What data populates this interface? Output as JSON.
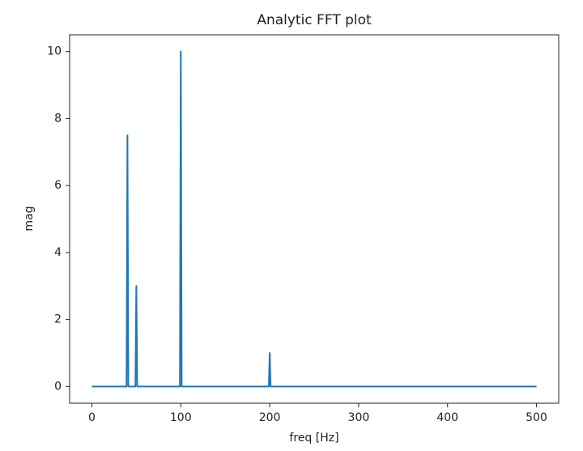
{
  "chart_data": {
    "type": "line",
    "title": "Analytic FFT plot",
    "xlabel": "freq [Hz]",
    "ylabel": "mag",
    "x": [
      0,
      39,
      40,
      41,
      49,
      50,
      51,
      99,
      100,
      101,
      199,
      200,
      201,
      500
    ],
    "series": [
      {
        "color": "#1f77b4",
        "values": [
          0,
          0,
          7.5,
          0,
          0,
          3,
          0,
          0,
          10,
          0,
          0,
          1,
          0,
          0
        ]
      }
    ],
    "xlim": [
      -25,
      525
    ],
    "ylim": [
      -0.5,
      10.5
    ],
    "xticks": [
      0,
      100,
      200,
      300,
      400,
      500
    ],
    "yticks": [
      0,
      2,
      4,
      6,
      8,
      10
    ]
  }
}
